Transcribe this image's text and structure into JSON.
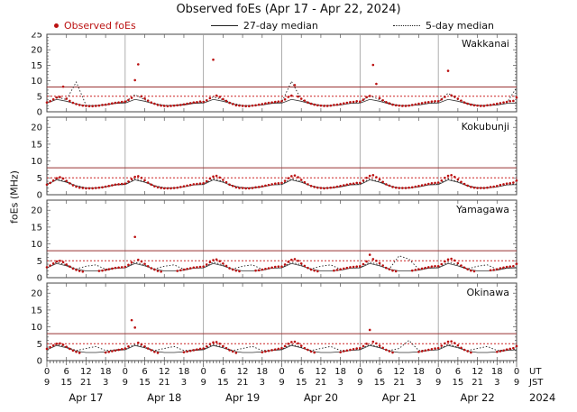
{
  "title": "Observed foEs (Apr 17 - Apr 22, 2024)",
  "legend": {
    "observed": "Observed foEs",
    "median27": "27-day median",
    "median5": "5-day median"
  },
  "colors": {
    "observed": "#bb1111",
    "observed_label": "#bb1111",
    "threshold_solid": "#993333",
    "threshold_dotted": "#cc2222",
    "median27": "#333333",
    "median5": "#222222",
    "grid": "#999999",
    "frame": "#444444"
  },
  "chart_data": {
    "type": "scatter",
    "title": "Observed foEs (Apr 17 - Apr 22, 2024)",
    "ylabel": "foEs (MHz)",
    "x_span_hours": 144,
    "thresholds": {
      "solid": 8,
      "dotted": 5
    },
    "x_ticks": {
      "ut": [
        "0",
        "6",
        "12",
        "18",
        "0",
        "6",
        "12",
        "18",
        "0",
        "6",
        "12",
        "18",
        "0",
        "6",
        "12",
        "18",
        "0",
        "6",
        "12",
        "18",
        "0",
        "6",
        "12",
        "18",
        "0"
      ],
      "jst": [
        "9",
        "15",
        "21",
        "3",
        "9",
        "15",
        "21",
        "3",
        "9",
        "15",
        "21",
        "3",
        "9",
        "15",
        "21",
        "3",
        "9",
        "15",
        "21",
        "3",
        "9",
        "15",
        "21",
        "3",
        "9"
      ],
      "ut_label": "UT",
      "jst_label": "JST",
      "year_label": "2024",
      "day_labels": [
        "Apr 17",
        "Apr 18",
        "Apr 19",
        "Apr 20",
        "Apr 21",
        "Apr 22"
      ]
    },
    "panels": [
      {
        "station": "Wakkanai",
        "ylim": [
          0,
          25
        ],
        "yticks": [
          0,
          5,
          10,
          15,
          20,
          25
        ],
        "observed": [
          3.0,
          3.4,
          4.0,
          4.6,
          4.8,
          8.1,
          4.2,
          3.5,
          2.9,
          2.5,
          2.2,
          2.0,
          1.9,
          1.8,
          1.8,
          1.9,
          2.0,
          2.2,
          2.3,
          2.5,
          2.7,
          2.9,
          3.0,
          3.2,
          3.3,
          3.8,
          4.5,
          10.2,
          15.3,
          5.0,
          4.3,
          3.6,
          3.0,
          2.6,
          2.2,
          2.0,
          1.9,
          1.8,
          1.9,
          2.0,
          2.1,
          2.2,
          2.4,
          2.6,
          2.8,
          3.0,
          3.1,
          3.3,
          3.2,
          3.7,
          4.4,
          16.8,
          5.2,
          4.8,
          4.1,
          3.5,
          2.9,
          2.5,
          2.1,
          2.0,
          1.9,
          1.8,
          1.8,
          2.0,
          2.1,
          2.3,
          2.5,
          2.7,
          2.9,
          3.0,
          3.2,
          3.3,
          3.4,
          4.0,
          4.8,
          5.2,
          8.6,
          4.9,
          4.2,
          3.6,
          3.0,
          2.6,
          2.3,
          2.1,
          2.0,
          1.9,
          1.9,
          2.0,
          2.2,
          2.3,
          2.5,
          2.7,
          2.9,
          3.1,
          3.2,
          3.4,
          3.3,
          3.9,
          4.7,
          5.1,
          15.1,
          9.0,
          4.4,
          3.7,
          3.1,
          2.7,
          2.3,
          2.1,
          2.0,
          1.9,
          1.9,
          2.0,
          2.2,
          2.4,
          2.6,
          2.8,
          3.0,
          3.1,
          3.3,
          3.4,
          3.4,
          4.0,
          4.8,
          13.2,
          5.3,
          4.9,
          4.2,
          3.6,
          3.0,
          2.6,
          2.3,
          2.1,
          2.0,
          1.9,
          1.9,
          2.1,
          2.2,
          2.4,
          2.6,
          2.8,
          3.0,
          3.2,
          3.4,
          3.5,
          4.6
        ],
        "median27": [
          2.8,
          4.0,
          3.4,
          2.5,
          2.0,
          2.0,
          2.2,
          2.7,
          2.8,
          4.0,
          3.4,
          2.5,
          2.0,
          2.0,
          2.2,
          2.7,
          2.8,
          4.0,
          3.4,
          2.5,
          2.0,
          2.0,
          2.2,
          2.7,
          2.8,
          4.0,
          3.4,
          2.5,
          2.0,
          2.0,
          2.2,
          2.7,
          2.8,
          4.0,
          3.4,
          2.5,
          2.0,
          2.0,
          2.2,
          2.7,
          2.8,
          4.0,
          3.4,
          2.5,
          2.0,
          2.0,
          2.2,
          2.7,
          2.8
        ],
        "median5": [
          3.1,
          4.8,
          3.9,
          9.6,
          2.1,
          2.1,
          2.4,
          2.9,
          3.1,
          5.5,
          3.9,
          2.7,
          2.1,
          2.1,
          2.4,
          2.9,
          3.1,
          4.8,
          3.9,
          2.7,
          2.1,
          2.1,
          2.4,
          2.9,
          3.1,
          9.8,
          3.9,
          2.7,
          2.1,
          2.1,
          2.4,
          2.9,
          3.1,
          5.2,
          3.9,
          2.7,
          2.1,
          2.1,
          2.4,
          2.9,
          3.1,
          6.0,
          3.9,
          2.7,
          2.1,
          2.1,
          2.4,
          2.9,
          7.8
        ]
      },
      {
        "station": "Kokubunji",
        "ylim": [
          0,
          23
        ],
        "yticks": [
          0,
          5,
          10,
          15,
          20
        ],
        "observed": [
          3.0,
          3.5,
          4.2,
          4.9,
          5.2,
          4.8,
          4.1,
          3.4,
          2.8,
          2.4,
          2.1,
          2.0,
          1.9,
          1.9,
          1.9,
          2.0,
          2.1,
          2.2,
          2.4,
          2.6,
          2.8,
          3.0,
          3.1,
          3.2,
          3.3,
          3.9,
          4.6,
          5.3,
          5.5,
          5.0,
          4.3,
          3.6,
          3.0,
          2.5,
          2.2,
          2.0,
          1.9,
          1.9,
          1.9,
          2.0,
          2.1,
          2.3,
          2.5,
          2.7,
          2.9,
          3.1,
          3.2,
          3.3,
          3.4,
          4.0,
          4.8,
          5.4,
          5.6,
          5.1,
          4.4,
          3.7,
          3.0,
          2.6,
          2.2,
          2.0,
          2.0,
          1.9,
          1.9,
          2.0,
          2.2,
          2.3,
          2.5,
          2.7,
          2.9,
          3.1,
          3.3,
          3.4,
          3.5,
          4.1,
          4.9,
          5.5,
          5.7,
          5.2,
          4.4,
          3.7,
          3.1,
          2.6,
          2.3,
          2.1,
          2.0,
          1.9,
          2.0,
          2.1,
          2.2,
          2.4,
          2.6,
          2.8,
          3.0,
          3.2,
          3.3,
          3.5,
          3.5,
          4.2,
          5.0,
          5.6,
          5.8,
          5.2,
          4.5,
          3.8,
          3.1,
          2.7,
          2.3,
          2.1,
          2.0,
          2.0,
          2.0,
          2.1,
          2.2,
          2.4,
          2.6,
          2.8,
          3.0,
          3.2,
          3.4,
          3.5,
          3.6,
          4.2,
          5.0,
          5.6,
          5.8,
          5.3,
          4.5,
          3.8,
          3.2,
          2.7,
          2.3,
          2.1,
          2.0,
          2.0,
          2.0,
          2.1,
          2.3,
          2.4,
          2.6,
          2.9,
          3.1,
          3.3,
          3.4,
          3.6,
          4.2
        ],
        "median27": [
          3.0,
          4.4,
          3.7,
          2.6,
          2.0,
          2.0,
          2.3,
          2.9,
          3.0,
          4.4,
          3.7,
          2.6,
          2.0,
          2.0,
          2.3,
          2.9,
          3.0,
          4.4,
          3.7,
          2.6,
          2.0,
          2.0,
          2.3,
          2.9,
          3.0,
          4.4,
          3.7,
          2.6,
          2.0,
          2.0,
          2.3,
          2.9,
          3.0,
          4.4,
          3.7,
          2.6,
          2.0,
          2.0,
          2.3,
          2.9,
          3.0,
          4.4,
          3.7,
          2.6,
          2.0,
          2.0,
          2.3,
          2.9,
          3.0
        ],
        "median5": [
          3.2,
          4.7,
          3.9,
          2.7,
          2.1,
          2.1,
          2.4,
          3.0,
          3.2,
          4.7,
          3.9,
          2.7,
          2.1,
          2.1,
          2.4,
          3.0,
          3.2,
          4.7,
          3.9,
          2.7,
          2.1,
          2.1,
          2.4,
          3.0,
          3.2,
          4.7,
          3.9,
          2.7,
          2.1,
          2.1,
          2.4,
          3.0,
          3.2,
          4.7,
          3.9,
          2.7,
          2.1,
          2.1,
          2.4,
          3.0,
          3.2,
          4.7,
          3.9,
          2.7,
          2.1,
          2.1,
          2.4,
          3.0,
          3.2
        ]
      },
      {
        "station": "Yamagawa",
        "ylim": [
          0,
          23
        ],
        "yticks": [
          0,
          5,
          10,
          15,
          20
        ],
        "observed": [
          3.1,
          3.6,
          4.2,
          4.8,
          5.0,
          4.6,
          3.9,
          3.3,
          2.7,
          2.3,
          2.0,
          1.8,
          null,
          null,
          null,
          null,
          2.0,
          2.1,
          2.3,
          2.5,
          2.7,
          2.9,
          3.0,
          3.1,
          3.2,
          3.8,
          4.5,
          12.1,
          5.3,
          4.8,
          4.1,
          3.4,
          2.8,
          2.4,
          2.0,
          1.8,
          null,
          null,
          null,
          null,
          2.0,
          2.2,
          2.4,
          2.6,
          2.8,
          3.0,
          3.1,
          3.2,
          3.3,
          3.9,
          4.6,
          5.2,
          5.4,
          4.9,
          4.2,
          3.5,
          2.8,
          2.4,
          2.1,
          1.9,
          null,
          null,
          null,
          null,
          2.1,
          2.2,
          2.4,
          2.6,
          2.8,
          3.0,
          3.2,
          3.3,
          3.3,
          3.9,
          4.7,
          5.3,
          5.5,
          5.0,
          4.2,
          3.5,
          2.9,
          2.4,
          2.1,
          1.9,
          null,
          null,
          null,
          null,
          2.1,
          2.3,
          2.5,
          2.7,
          2.9,
          3.1,
          3.2,
          3.3,
          3.4,
          4.0,
          4.8,
          6.8,
          5.5,
          5.0,
          4.3,
          3.6,
          2.9,
          2.5,
          2.1,
          1.9,
          null,
          null,
          null,
          null,
          2.1,
          2.3,
          2.5,
          2.7,
          2.9,
          3.1,
          3.3,
          3.4,
          3.4,
          4.0,
          4.8,
          5.4,
          5.6,
          5.1,
          4.3,
          3.6,
          3.0,
          2.5,
          2.1,
          1.9,
          null,
          null,
          null,
          null,
          2.2,
          2.3,
          2.5,
          2.8,
          3.0,
          3.2,
          3.3,
          3.4,
          4.1
        ],
        "median27": [
          2.9,
          4.2,
          3.5,
          2.5,
          2.0,
          2.0,
          2.2,
          2.8,
          2.9,
          4.2,
          3.5,
          2.5,
          2.0,
          2.0,
          2.2,
          2.8,
          2.9,
          4.2,
          3.5,
          2.5,
          2.0,
          2.0,
          2.2,
          2.8,
          2.9,
          4.2,
          3.5,
          2.5,
          2.0,
          2.0,
          2.2,
          2.8,
          2.9,
          4.2,
          3.5,
          2.5,
          2.0,
          2.0,
          2.2,
          2.8,
          2.9,
          4.2,
          3.5,
          2.5,
          2.0,
          2.0,
          2.2,
          2.8,
          2.9
        ],
        "median5": [
          3.0,
          4.6,
          3.8,
          2.6,
          3.4,
          3.8,
          2.5,
          2.9,
          3.0,
          4.6,
          3.8,
          2.6,
          3.4,
          3.8,
          2.5,
          2.9,
          3.0,
          4.6,
          3.8,
          2.6,
          3.4,
          3.8,
          2.5,
          2.9,
          3.0,
          4.6,
          3.8,
          2.6,
          3.4,
          3.8,
          2.5,
          2.9,
          3.0,
          4.6,
          3.8,
          2.6,
          6.5,
          5.5,
          2.5,
          2.9,
          3.0,
          4.6,
          3.8,
          2.6,
          3.4,
          3.8,
          2.5,
          2.9,
          3.0
        ]
      },
      {
        "station": "Okinawa",
        "ylim": [
          0,
          23
        ],
        "yticks": [
          0,
          5,
          10,
          15,
          20
        ],
        "observed": [
          3.5,
          4.0,
          4.5,
          5.0,
          5.1,
          4.7,
          4.1,
          3.5,
          3.0,
          2.6,
          2.3,
          null,
          null,
          null,
          null,
          null,
          null,
          null,
          2.4,
          2.6,
          2.8,
          3.0,
          3.2,
          3.4,
          3.6,
          4.2,
          12.0,
          9.8,
          5.3,
          4.8,
          4.2,
          3.6,
          3.1,
          2.6,
          2.3,
          null,
          null,
          null,
          null,
          null,
          null,
          null,
          2.5,
          2.7,
          2.9,
          3.1,
          3.3,
          3.5,
          3.6,
          4.2,
          4.9,
          5.4,
          5.5,
          5.0,
          4.3,
          3.7,
          3.1,
          2.7,
          2.3,
          null,
          null,
          null,
          null,
          null,
          null,
          null,
          2.5,
          2.7,
          2.9,
          3.1,
          3.3,
          3.5,
          3.7,
          4.3,
          5.0,
          5.5,
          5.6,
          5.1,
          4.4,
          3.7,
          3.2,
          2.7,
          2.4,
          null,
          null,
          null,
          null,
          null,
          null,
          null,
          2.5,
          2.8,
          3.0,
          3.2,
          3.4,
          3.6,
          3.7,
          4.3,
          5.0,
          9.1,
          5.6,
          5.1,
          4.4,
          3.8,
          3.2,
          2.8,
          2.4,
          null,
          null,
          null,
          null,
          null,
          null,
          null,
          2.6,
          2.8,
          3.0,
          3.2,
          3.4,
          3.6,
          3.7,
          4.4,
          5.1,
          5.6,
          5.7,
          5.2,
          4.5,
          3.8,
          3.2,
          2.8,
          2.4,
          null,
          null,
          null,
          null,
          null,
          null,
          null,
          2.6,
          2.8,
          3.0,
          3.3,
          3.5,
          3.7,
          4.3
        ],
        "median27": [
          3.2,
          4.5,
          3.8,
          2.8,
          2.4,
          2.4,
          2.6,
          3.0,
          3.2,
          4.5,
          3.8,
          2.8,
          2.4,
          2.4,
          2.6,
          3.0,
          3.2,
          4.5,
          3.8,
          2.8,
          2.4,
          2.4,
          2.6,
          3.0,
          3.2,
          4.5,
          3.8,
          2.8,
          2.4,
          2.4,
          2.6,
          3.0,
          3.2,
          4.5,
          3.8,
          2.8,
          2.4,
          2.4,
          2.6,
          3.0,
          3.2,
          4.5,
          3.8,
          2.8,
          2.4,
          2.4,
          2.6,
          3.0,
          3.2
        ],
        "median5": [
          3.4,
          4.8,
          4.0,
          3.0,
          3.6,
          4.2,
          3.0,
          3.2,
          3.4,
          4.8,
          4.0,
          3.0,
          3.6,
          4.2,
          3.0,
          3.2,
          3.4,
          4.8,
          4.0,
          3.0,
          3.6,
          4.2,
          3.0,
          3.2,
          3.4,
          4.8,
          4.0,
          3.0,
          3.6,
          4.2,
          3.0,
          3.2,
          3.4,
          4.8,
          4.0,
          3.0,
          3.6,
          6.0,
          3.0,
          3.2,
          3.4,
          4.8,
          4.0,
          3.0,
          3.6,
          4.2,
          3.0,
          3.2,
          3.4
        ]
      }
    ]
  }
}
